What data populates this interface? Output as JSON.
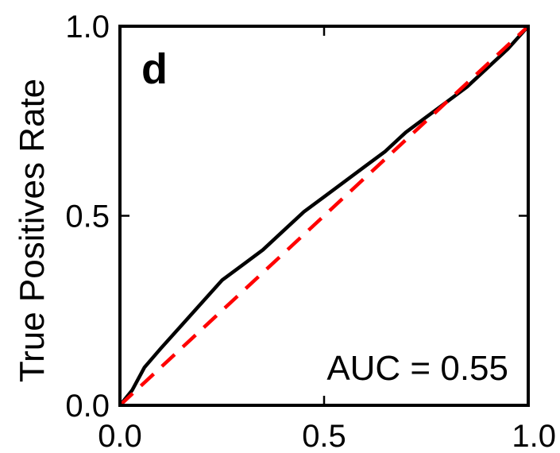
{
  "chart_data": {
    "type": "line",
    "panel_label": "d",
    "title": "",
    "xlabel": "",
    "ylabel": "True Positives Rate",
    "xlim": [
      0.0,
      1.0
    ],
    "ylim": [
      0.0,
      1.0
    ],
    "xticks": [
      0.0,
      0.5,
      1.0
    ],
    "yticks": [
      0.0,
      0.5,
      1.0
    ],
    "xtick_labels": [
      "0.0",
      "0.5",
      "1.0"
    ],
    "ytick_labels": [
      "0.0",
      "0.5",
      "1.0"
    ],
    "annotation": "AUC = 0.55",
    "grid": false,
    "series": [
      {
        "style": "solid",
        "color": "#000000",
        "x": [
          0.0,
          0.03,
          0.06,
          0.1,
          0.15,
          0.2,
          0.25,
          0.3,
          0.35,
          0.4,
          0.45,
          0.5,
          0.55,
          0.6,
          0.65,
          0.7,
          0.75,
          0.8,
          0.85,
          0.9,
          0.95,
          1.0
        ],
        "y": [
          0.0,
          0.04,
          0.1,
          0.15,
          0.21,
          0.27,
          0.33,
          0.37,
          0.41,
          0.46,
          0.51,
          0.55,
          0.59,
          0.63,
          0.67,
          0.72,
          0.76,
          0.8,
          0.84,
          0.89,
          0.94,
          1.0
        ]
      },
      {
        "style": "dashed",
        "color": "#ff0000",
        "x": [
          0.0,
          1.0
        ],
        "y": [
          0.0,
          1.0
        ]
      }
    ]
  }
}
